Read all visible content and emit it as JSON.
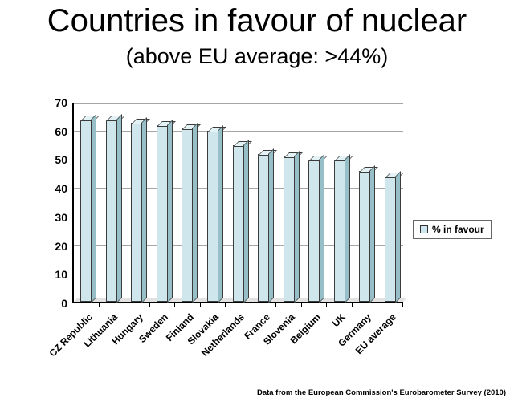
{
  "slide": {
    "title": "Countries in favour of nuclear",
    "subtitle": "(above EU average: >44%)",
    "footer": "Data from the European Commission's Eurobarometer Survey (2010)"
  },
  "chart_data": {
    "type": "bar",
    "title": "Countries in favour of nuclear",
    "subtitle": "(above EU average: >44%)",
    "categories": [
      "CZ Republic",
      "Lithuania",
      "Hungary",
      "Sweden",
      "Finland",
      "Slovakia",
      "Netherlands",
      "France",
      "Slovenia",
      "Belgium",
      "UK",
      "Germany",
      "EU average"
    ],
    "values": [
      64,
      64,
      63,
      62,
      61,
      60,
      55,
      52,
      51,
      50,
      50,
      46,
      44
    ],
    "legend": [
      "% in favour"
    ],
    "legend_position": "right",
    "xlabel": "",
    "ylabel": "",
    "ylim": [
      0,
      70
    ],
    "ytick_step": 10,
    "grid": true,
    "bar_color": "#cfe7ec",
    "bar_top_color": "#e3f2f5",
    "bar_side_color": "#97bfc7",
    "bar_border_color": "#3c3c3c",
    "style_3d": true
  }
}
